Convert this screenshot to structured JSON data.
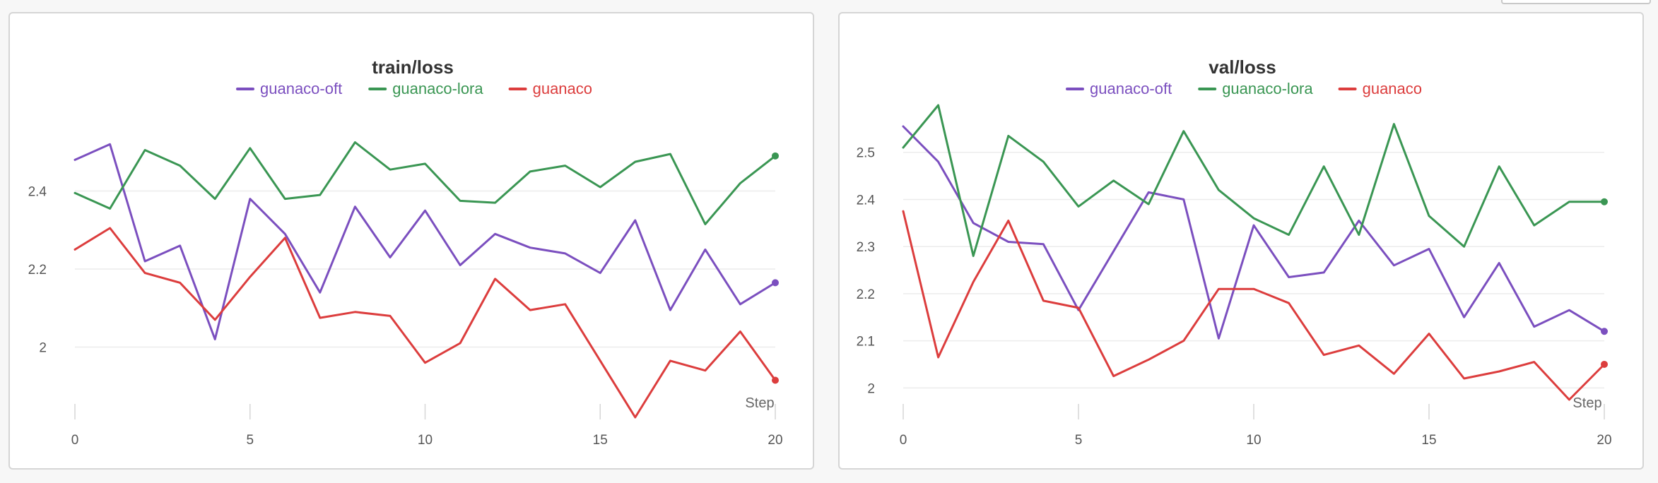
{
  "chart_data": [
    {
      "type": "line",
      "title": "train/loss",
      "xlabel": "Step",
      "x": [
        0,
        1,
        2,
        3,
        4,
        5,
        6,
        7,
        8,
        9,
        10,
        11,
        12,
        13,
        14,
        15,
        16,
        17,
        18,
        19,
        20
      ],
      "xlim": [
        0,
        20
      ],
      "ylim": [
        1.82,
        2.62
      ],
      "xticks": [
        0,
        5,
        10,
        15,
        20
      ],
      "yticks": [
        2,
        2.2,
        2.4
      ],
      "ytick_labels": [
        "2",
        "2.2",
        "2.4"
      ],
      "grid": true,
      "legend_position": "top-center",
      "series": [
        {
          "name": "guanaco-oft",
          "color": "#7b4fbf",
          "values": [
            2.48,
            2.52,
            2.22,
            2.26,
            2.02,
            2.38,
            2.29,
            2.14,
            2.36,
            2.23,
            2.35,
            2.21,
            2.29,
            2.255,
            2.24,
            2.19,
            2.325,
            2.095,
            2.25,
            2.11,
            2.165
          ]
        },
        {
          "name": "guanaco-lora",
          "color": "#3a9653",
          "values": [
            2.395,
            2.355,
            2.505,
            2.465,
            2.38,
            2.51,
            2.38,
            2.39,
            2.525,
            2.455,
            2.47,
            2.375,
            2.37,
            2.45,
            2.465,
            2.41,
            2.475,
            2.495,
            2.315,
            2.42,
            2.49
          ]
        },
        {
          "name": "guanaco",
          "color": "#dc3d3d",
          "values": [
            2.25,
            2.305,
            2.19,
            2.165,
            2.07,
            2.18,
            2.28,
            2.075,
            2.09,
            2.08,
            1.96,
            2.01,
            2.175,
            2.095,
            2.11,
            1.965,
            1.82,
            1.965,
            1.94,
            2.04,
            1.915
          ]
        }
      ]
    },
    {
      "type": "line",
      "title": "val/loss",
      "xlabel": "Step",
      "x": [
        0,
        1,
        2,
        3,
        4,
        5,
        6,
        7,
        8,
        9,
        10,
        11,
        12,
        13,
        14,
        15,
        16,
        17,
        18,
        19,
        20
      ],
      "xlim": [
        0,
        20
      ],
      "ylim": [
        1.975,
        2.6
      ],
      "xticks": [
        0,
        5,
        10,
        15,
        20
      ],
      "yticks": [
        2,
        2.1,
        2.2,
        2.3,
        2.4,
        2.5
      ],
      "ytick_labels": [
        "2",
        "2.1",
        "2.2",
        "2.3",
        "2.4",
        "2.5"
      ],
      "grid": true,
      "legend_position": "top-center",
      "series": [
        {
          "name": "guanaco-oft",
          "color": "#7b4fbf",
          "values": [
            2.555,
            2.48,
            2.35,
            2.31,
            2.305,
            2.165,
            2.29,
            2.415,
            2.4,
            2.105,
            2.345,
            2.235,
            2.245,
            2.355,
            2.26,
            2.295,
            2.15,
            2.265,
            2.13,
            2.165,
            2.12
          ]
        },
        {
          "name": "guanaco-lora",
          "color": "#3a9653",
          "values": [
            2.51,
            2.6,
            2.28,
            2.535,
            2.48,
            2.385,
            2.44,
            2.39,
            2.545,
            2.42,
            2.36,
            2.325,
            2.47,
            2.325,
            2.56,
            2.365,
            2.3,
            2.47,
            2.345,
            2.395,
            2.395
          ]
        },
        {
          "name": "guanaco",
          "color": "#dc3d3d",
          "values": [
            2.375,
            2.065,
            2.225,
            2.355,
            2.185,
            2.17,
            2.025,
            2.06,
            2.1,
            2.21,
            2.21,
            2.18,
            2.07,
            2.09,
            2.03,
            2.115,
            2.02,
            2.035,
            2.055,
            1.975,
            2.05
          ]
        }
      ]
    }
  ]
}
